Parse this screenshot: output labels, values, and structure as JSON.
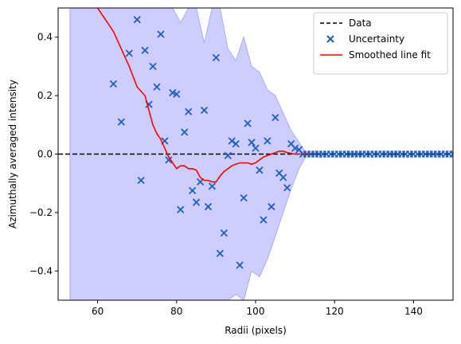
{
  "chart_data": {
    "type": "scatter",
    "title": "",
    "xlabel": "Radii (pixels)",
    "ylabel": "Azimuthally averaged intensity",
    "xlim": [
      50,
      150
    ],
    "ylim": [
      -0.5,
      0.5
    ],
    "xticks": [
      60,
      80,
      100,
      120,
      140
    ],
    "yticks": [
      -0.4,
      -0.2,
      0.0,
      0.2,
      0.4
    ],
    "xtick_labels": [
      "60",
      "80",
      "100",
      "120",
      "140"
    ],
    "ytick_labels": [
      "−0.4",
      "−0.2",
      "0.0",
      "0.2",
      "0.4"
    ],
    "grid": false,
    "legend_position": "top-right",
    "colors": {
      "data_line": "#000000",
      "uncertainty_marker": "#1f5fbf",
      "fit_line": "#ff0000",
      "band_fill": "#c8c8ff",
      "band_edge": "#aaaaff"
    },
    "series": [
      {
        "name": "Data",
        "kind": "line",
        "x": [
          50,
          150
        ],
        "y": [
          0,
          0
        ]
      },
      {
        "name": "Uncertainty",
        "kind": "scatter",
        "x": [
          64,
          66,
          68,
          70,
          71,
          72,
          73,
          74,
          75,
          76,
          77,
          78,
          79,
          80,
          81,
          82,
          83,
          84,
          85,
          86,
          87,
          88,
          89,
          90,
          91,
          92,
          93,
          94,
          95,
          96,
          97,
          98,
          99,
          100,
          101,
          102,
          103,
          104,
          105,
          106,
          107,
          108,
          109,
          110,
          111
        ],
        "y": [
          0.24,
          0.11,
          0.345,
          0.46,
          -0.09,
          0.355,
          0.17,
          0.3,
          0.23,
          0.41,
          0.045,
          -0.02,
          0.21,
          0.205,
          -0.19,
          0.075,
          0.145,
          -0.125,
          -0.165,
          -0.095,
          0.15,
          -0.18,
          -0.11,
          0.33,
          -0.34,
          -0.27,
          -0.005,
          0.045,
          0.035,
          -0.38,
          -0.15,
          0.105,
          0.04,
          0.02,
          -0.055,
          -0.225,
          0.045,
          -0.18,
          0.125,
          -0.065,
          -0.08,
          -0.115,
          0.035,
          0.02,
          0.015
        ]
      },
      {
        "name": "Smoothed line fit",
        "kind": "line",
        "x": [
          60,
          62,
          64,
          66,
          68,
          70,
          72,
          74,
          75,
          76,
          77,
          78,
          79,
          80,
          81,
          82,
          83,
          84,
          85,
          86,
          87,
          88,
          89,
          90,
          91,
          92,
          93,
          94,
          95,
          96,
          97,
          98,
          99,
          100,
          101,
          102,
          103,
          104,
          105,
          106,
          107,
          108,
          110,
          112,
          114
        ],
        "y": [
          0.5,
          0.46,
          0.42,
          0.36,
          0.3,
          0.23,
          0.2,
          0.1,
          0.07,
          0.05,
          0.02,
          -0.01,
          -0.03,
          -0.05,
          -0.04,
          -0.04,
          -0.05,
          -0.05,
          -0.055,
          -0.08,
          -0.09,
          -0.09,
          -0.095,
          -0.095,
          -0.075,
          -0.06,
          -0.05,
          -0.04,
          -0.035,
          -0.03,
          -0.03,
          -0.03,
          -0.035,
          -0.03,
          -0.02,
          -0.01,
          -0.005,
          0.0,
          0.005,
          0.01,
          0.01,
          0.005,
          0.0,
          0.0,
          0.0
        ]
      }
    ],
    "band": {
      "x": [
        53,
        55,
        57,
        59,
        61,
        63,
        65,
        67,
        69,
        71,
        73,
        75,
        77,
        79,
        81,
        83,
        85,
        87,
        89,
        91,
        93,
        95,
        97,
        99,
        101,
        103,
        105,
        107,
        109,
        111,
        113
      ],
      "upper": [
        0.5,
        0.5,
        0.5,
        0.5,
        0.5,
        0.5,
        0.5,
        0.5,
        0.5,
        0.5,
        0.5,
        0.5,
        0.5,
        0.5,
        0.45,
        0.5,
        0.5,
        0.38,
        0.5,
        0.5,
        0.36,
        0.32,
        0.4,
        0.3,
        0.28,
        0.22,
        0.2,
        0.14,
        0.08,
        0.04,
        0.0
      ],
      "lower": [
        -0.5,
        -0.5,
        -0.5,
        -0.5,
        -0.5,
        -0.5,
        -0.5,
        -0.5,
        -0.5,
        -0.5,
        -0.5,
        -0.5,
        -0.5,
        -0.5,
        -0.5,
        -0.5,
        -0.5,
        -0.5,
        -0.5,
        -0.5,
        -0.5,
        -0.48,
        -0.5,
        -0.4,
        -0.42,
        -0.36,
        -0.28,
        -0.2,
        -0.12,
        -0.05,
        0.0
      ]
    },
    "flat_markers": {
      "x_start": 112,
      "x_end": 150,
      "step": 1,
      "y": 0.0
    }
  }
}
